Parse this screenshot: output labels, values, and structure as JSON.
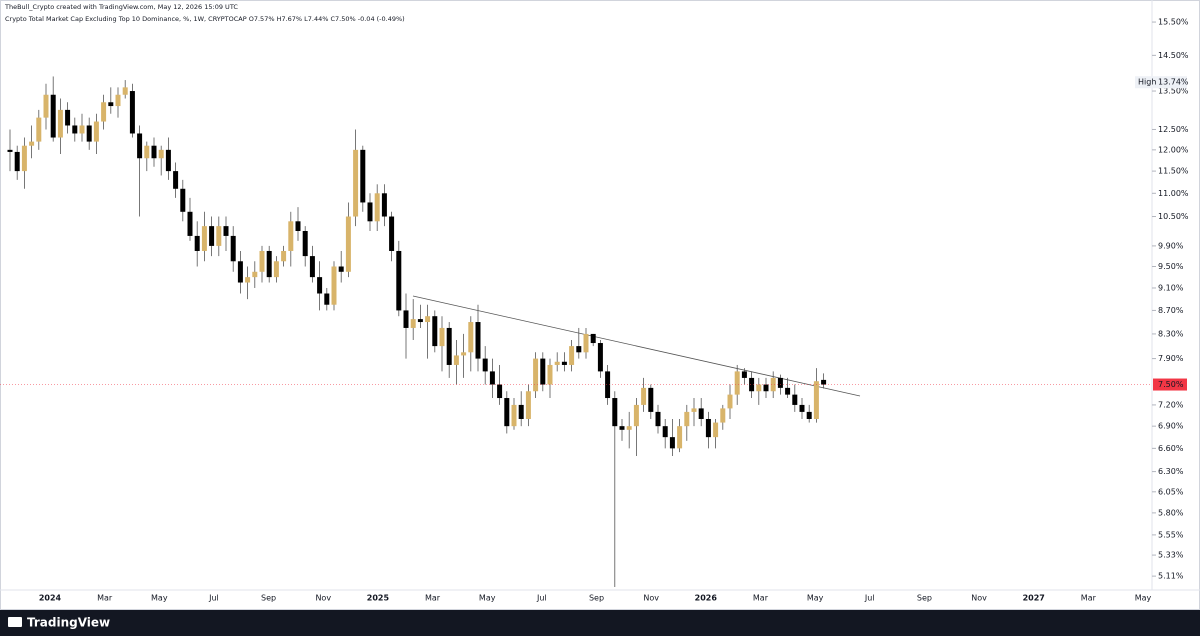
{
  "header": {
    "credit": "TheBull_Crypto created with TradingView.com, May 12, 2026 15:09 UTC",
    "legend": "Crypto Total Market Cap Excluding Top 10 Dominance, %, 1W, CRYPTOCAP  O7.57%  H7.67%  L7.44%  C7.50%  -0.04 (-0.49%)"
  },
  "footer": {
    "brand": "TradingView"
  },
  "chart_data": {
    "type": "candlestick",
    "log_scale": true,
    "up_color": "#d8b46a",
    "down_color": "#000000",
    "ylim": [
      4.97,
      16.2
    ],
    "yticks": [
      {
        "value": 15.5,
        "label": "15.50%"
      },
      {
        "value": 14.5,
        "label": "14.50%"
      },
      {
        "value": 13.5,
        "label": "13.50%"
      },
      {
        "value": 12.5,
        "label": "12.50%"
      },
      {
        "value": 12.0,
        "label": "12.00%"
      },
      {
        "value": 11.5,
        "label": "11.50%"
      },
      {
        "value": 11.0,
        "label": "11.00%"
      },
      {
        "value": 10.5,
        "label": "10.50%"
      },
      {
        "value": 9.9,
        "label": "9.90%"
      },
      {
        "value": 9.5,
        "label": "9.50%"
      },
      {
        "value": 9.1,
        "label": "9.10%"
      },
      {
        "value": 8.7,
        "label": "8.70%"
      },
      {
        "value": 8.3,
        "label": "8.30%"
      },
      {
        "value": 7.9,
        "label": "7.90%"
      },
      {
        "value": 7.2,
        "label": "7.20%"
      },
      {
        "value": 6.9,
        "label": "6.90%"
      },
      {
        "value": 6.6,
        "label": "6.60%"
      },
      {
        "value": 6.3,
        "label": "6.30%"
      },
      {
        "value": 6.05,
        "label": "6.05%"
      },
      {
        "value": 5.8,
        "label": "5.80%"
      },
      {
        "value": 5.55,
        "label": "5.55%"
      },
      {
        "value": 5.33,
        "label": "5.33%"
      },
      {
        "value": 5.11,
        "label": "5.11%"
      }
    ],
    "x_labels": [
      "2024",
      "Mar",
      "May",
      "Jul",
      "Sep",
      "Nov",
      "2025",
      "Mar",
      "May",
      "Jul",
      "Sep",
      "Nov",
      "2026",
      "Mar",
      "May",
      "Jul",
      "Sep",
      "Nov",
      "2027",
      "Mar",
      "May"
    ],
    "high_marker": {
      "text": "High",
      "value": 13.74,
      "label": "13.74%"
    },
    "last_price": {
      "value": 7.5,
      "label": "7.50%"
    },
    "ohlc": [
      [
        12.0,
        12.5,
        11.5,
        11.95
      ],
      [
        11.95,
        12.1,
        11.3,
        11.5
      ],
      [
        11.5,
        12.3,
        11.1,
        12.1
      ],
      [
        12.1,
        12.6,
        11.8,
        12.2
      ],
      [
        12.2,
        13.0,
        12.0,
        12.8
      ],
      [
        12.8,
        13.7,
        12.5,
        13.4
      ],
      [
        13.4,
        13.9,
        12.2,
        12.3
      ],
      [
        12.3,
        13.3,
        11.9,
        13.0
      ],
      [
        13.0,
        13.2,
        12.4,
        12.6
      ],
      [
        12.6,
        12.8,
        12.2,
        12.4
      ],
      [
        12.4,
        12.9,
        12.2,
        12.6
      ],
      [
        12.6,
        12.8,
        12.0,
        12.2
      ],
      [
        12.2,
        12.9,
        11.9,
        12.7
      ],
      [
        12.7,
        13.4,
        12.5,
        13.2
      ],
      [
        13.2,
        13.6,
        12.9,
        13.1
      ],
      [
        13.1,
        13.6,
        12.8,
        13.4
      ],
      [
        13.4,
        13.8,
        13.3,
        13.6
      ],
      [
        13.5,
        13.7,
        12.3,
        12.4
      ],
      [
        12.4,
        12.6,
        10.5,
        11.8
      ],
      [
        11.8,
        12.2,
        11.5,
        12.1
      ],
      [
        12.1,
        12.3,
        11.6,
        11.8
      ],
      [
        11.8,
        12.1,
        11.4,
        12.0
      ],
      [
        12.0,
        12.3,
        11.3,
        11.5
      ],
      [
        11.5,
        11.7,
        10.9,
        11.1
      ],
      [
        11.1,
        11.3,
        10.4,
        10.6
      ],
      [
        10.6,
        10.9,
        10.0,
        10.1
      ],
      [
        10.1,
        10.4,
        9.5,
        9.8
      ],
      [
        9.8,
        10.6,
        9.6,
        10.3
      ],
      [
        10.3,
        10.5,
        9.7,
        9.9
      ],
      [
        9.9,
        10.5,
        9.7,
        10.3
      ],
      [
        10.3,
        10.5,
        9.8,
        10.1
      ],
      [
        10.1,
        10.3,
        9.4,
        9.6
      ],
      [
        9.6,
        9.8,
        9.0,
        9.2
      ],
      [
        9.2,
        9.5,
        8.9,
        9.3
      ],
      [
        9.3,
        9.6,
        9.1,
        9.4
      ],
      [
        9.4,
        9.9,
        9.2,
        9.8
      ],
      [
        9.8,
        9.9,
        9.2,
        9.3
      ],
      [
        9.3,
        9.7,
        9.2,
        9.6
      ],
      [
        9.6,
        9.9,
        9.5,
        9.8
      ],
      [
        9.8,
        10.6,
        9.5,
        10.4
      ],
      [
        10.4,
        10.7,
        10.0,
        10.2
      ],
      [
        10.2,
        10.3,
        9.5,
        9.7
      ],
      [
        9.7,
        9.9,
        9.2,
        9.3
      ],
      [
        9.3,
        9.6,
        8.7,
        9.0
      ],
      [
        9.0,
        9.1,
        8.7,
        8.8
      ],
      [
        8.8,
        9.6,
        8.7,
        9.5
      ],
      [
        9.5,
        9.8,
        9.2,
        9.4
      ],
      [
        9.4,
        10.8,
        9.3,
        10.5
      ],
      [
        10.5,
        12.5,
        10.3,
        12.0
      ],
      [
        12.0,
        12.1,
        10.6,
        10.8
      ],
      [
        10.8,
        11.0,
        10.2,
        10.4
      ],
      [
        10.4,
        11.2,
        10.2,
        11.0
      ],
      [
        11.0,
        11.2,
        10.3,
        10.5
      ],
      [
        10.5,
        10.6,
        9.6,
        9.8
      ],
      [
        9.8,
        10.0,
        8.6,
        8.7
      ],
      [
        8.7,
        9.0,
        7.9,
        8.4
      ],
      [
        8.4,
        8.9,
        8.2,
        8.55
      ],
      [
        8.55,
        8.8,
        8.4,
        8.5
      ],
      [
        8.5,
        8.8,
        7.9,
        8.6
      ],
      [
        8.6,
        8.7,
        8.0,
        8.1
      ],
      [
        8.1,
        8.6,
        7.7,
        8.4
      ],
      [
        8.4,
        8.5,
        7.6,
        7.8
      ],
      [
        7.8,
        8.2,
        7.5,
        7.95
      ],
      [
        7.95,
        8.3,
        7.6,
        8.0
      ],
      [
        8.0,
        8.6,
        7.7,
        8.5
      ],
      [
        8.5,
        8.8,
        7.7,
        7.9
      ],
      [
        7.9,
        8.1,
        7.5,
        7.7
      ],
      [
        7.7,
        7.9,
        7.3,
        7.5
      ],
      [
        7.5,
        7.8,
        7.2,
        7.3
      ],
      [
        7.3,
        7.4,
        6.8,
        6.9
      ],
      [
        6.9,
        7.3,
        6.85,
        7.2
      ],
      [
        7.2,
        7.4,
        6.9,
        7.0
      ],
      [
        7.0,
        7.5,
        6.9,
        7.4
      ],
      [
        7.4,
        8.0,
        7.3,
        7.9
      ],
      [
        7.9,
        8.0,
        7.4,
        7.5
      ],
      [
        7.5,
        7.9,
        7.3,
        7.8
      ],
      [
        7.8,
        8.0,
        7.7,
        7.85
      ],
      [
        7.85,
        8.0,
        7.7,
        7.8
      ],
      [
        7.8,
        8.2,
        7.7,
        8.1
      ],
      [
        8.1,
        8.4,
        7.9,
        8.0
      ],
      [
        8.0,
        8.4,
        7.9,
        8.3
      ],
      [
        8.3,
        8.3,
        8.1,
        8.15
      ],
      [
        8.15,
        8.2,
        7.6,
        7.7
      ],
      [
        7.7,
        7.8,
        7.2,
        7.3
      ],
      [
        7.3,
        7.4,
        5.0,
        6.9
      ],
      [
        6.9,
        7.0,
        6.7,
        6.85
      ],
      [
        6.85,
        7.1,
        6.6,
        6.9
      ],
      [
        6.9,
        7.3,
        6.5,
        7.2
      ],
      [
        7.2,
        7.6,
        7.1,
        7.45
      ],
      [
        7.45,
        7.5,
        7.0,
        7.1
      ],
      [
        7.1,
        7.2,
        6.8,
        6.9
      ],
      [
        6.9,
        7.0,
        6.6,
        6.75
      ],
      [
        6.75,
        7.0,
        6.5,
        6.6
      ],
      [
        6.6,
        7.0,
        6.55,
        6.9
      ],
      [
        6.9,
        7.2,
        6.7,
        7.1
      ],
      [
        7.1,
        7.3,
        6.9,
        7.15
      ],
      [
        7.15,
        7.3,
        6.9,
        7.0
      ],
      [
        7.0,
        7.1,
        6.6,
        6.75
      ],
      [
        6.75,
        7.0,
        6.6,
        6.95
      ],
      [
        6.95,
        7.2,
        6.85,
        7.15
      ],
      [
        7.15,
        7.5,
        7.0,
        7.35
      ],
      [
        7.35,
        7.8,
        7.2,
        7.7
      ],
      [
        7.7,
        7.75,
        7.5,
        7.6
      ],
      [
        7.6,
        7.7,
        7.3,
        7.4
      ],
      [
        7.4,
        7.6,
        7.2,
        7.5
      ],
      [
        7.5,
        7.6,
        7.3,
        7.4
      ],
      [
        7.4,
        7.7,
        7.3,
        7.6
      ],
      [
        7.6,
        7.65,
        7.35,
        7.45
      ],
      [
        7.45,
        7.6,
        7.3,
        7.35
      ],
      [
        7.35,
        7.5,
        7.1,
        7.2
      ],
      [
        7.2,
        7.3,
        7.0,
        7.1
      ],
      [
        7.1,
        7.2,
        6.95,
        7.0
      ],
      [
        7.0,
        7.75,
        6.95,
        7.55
      ],
      [
        7.57,
        7.67,
        7.44,
        7.5
      ]
    ]
  }
}
